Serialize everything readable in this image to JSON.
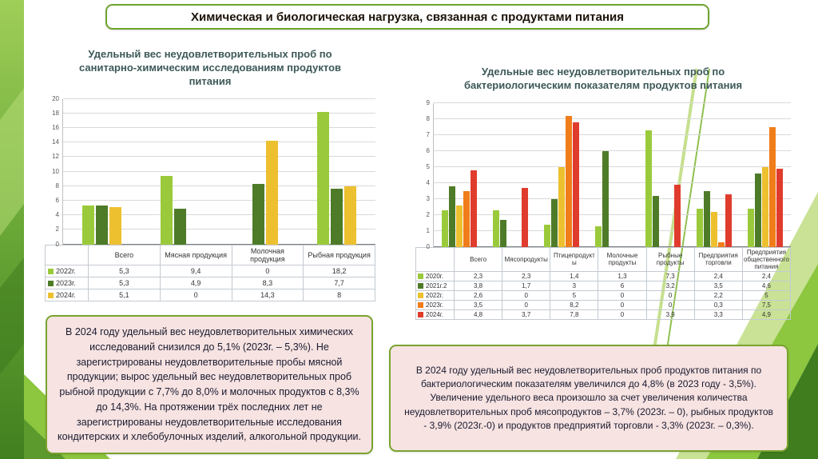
{
  "slide_title": "Химическая и биологическая нагрузка, связанная с продуктами питания",
  "chart_data": [
    {
      "type": "bar",
      "title": "Удельный вес неудовлетворительных проб по санитарно-химическим исследованиям продуктов питания",
      "categories": [
        "Всего",
        "Мясная продукция",
        "Молочная продукция",
        "Рыбная продукция"
      ],
      "series": [
        {
          "name": "2022г.",
          "color": "#9aca3b",
          "values": [
            5.3,
            9.4,
            0,
            18.2
          ]
        },
        {
          "name": "2023г.",
          "color": "#4e7b28",
          "values": [
            5.3,
            4.9,
            8.3,
            7.7
          ]
        },
        {
          "name": "2024г.",
          "color": "#edc02f",
          "values": [
            5.1,
            0,
            14.3,
            8
          ]
        }
      ],
      "ylim": [
        0,
        20
      ],
      "ytick_step": 2,
      "grid": true,
      "legend_position": "table-bottom-left"
    },
    {
      "type": "bar",
      "title": "Удельные вес неудовлетворительных проб по бактериологическим показателям продуктов питания",
      "categories": [
        "Всего",
        "Мясопродукты",
        "Птицепродукты",
        "Молочные продукты",
        "Рыбные продукты",
        "Предприятия торговли",
        "Предприятия общественного питания"
      ],
      "series": [
        {
          "name": "2020г.",
          "color": "#9aca3b",
          "values": [
            2.3,
            2.3,
            1.4,
            1.3,
            7.3,
            2.4,
            2.4
          ]
        },
        {
          "name": "2021г.2",
          "color": "#4e7b28",
          "values": [
            3.8,
            1.7,
            3,
            6,
            3.2,
            3.5,
            4.6
          ]
        },
        {
          "name": "2022г.",
          "color": "#edc02f",
          "values": [
            2.6,
            0,
            5,
            0,
            0,
            2.2,
            5
          ]
        },
        {
          "name": "2023г.",
          "color": "#f07d1a",
          "values": [
            3.5,
            0,
            8.2,
            0,
            0,
            0.3,
            7.5
          ]
        },
        {
          "name": "2024г.",
          "color": "#e03c2d",
          "values": [
            4.8,
            3.7,
            7.8,
            0,
            3.9,
            3.3,
            4.9
          ]
        }
      ],
      "ylim": [
        0,
        9
      ],
      "ytick_step": 1,
      "grid": true,
      "legend_position": "table-bottom-left"
    }
  ],
  "notes": {
    "chemical": "В 2024 году удельный вес неудовлетворительных химических исследований снизился до 5,1% (2023г. – 5,3%). Не зарегистрированы неудовлетворительные пробы мясной продукции; вырос удельный вес неудовлетворительных проб рыбной продукции с 7,7% до 8,0% и молочных продуктов с 8,3% до 14,3%. На протяжении трёх последних лет не зарегистрированы неудовлетворительные исследования кондитерских и хлебобулочных изделий, алкогольной продукции.",
    "bacteriological": "В 2024 году удельный вес неудовлетворительных проб продуктов питания по бактериологическим показателям увеличился до 4,8% (в 2023 году - 3,5%). Увеличение удельного веса произошло за счет увеличения количества неудовлетворительных проб мясопродуктов – 3,7% (2023г. – 0), рыбных продуктов - 3,9% (2023г.-0) и продуктов предприятий торговли - 3,3% (2023г. – 0,3%)."
  },
  "colors": {
    "accent_green": "#6da32e",
    "note_background": "#f6e3e2",
    "grid": "#d9d9d9"
  }
}
